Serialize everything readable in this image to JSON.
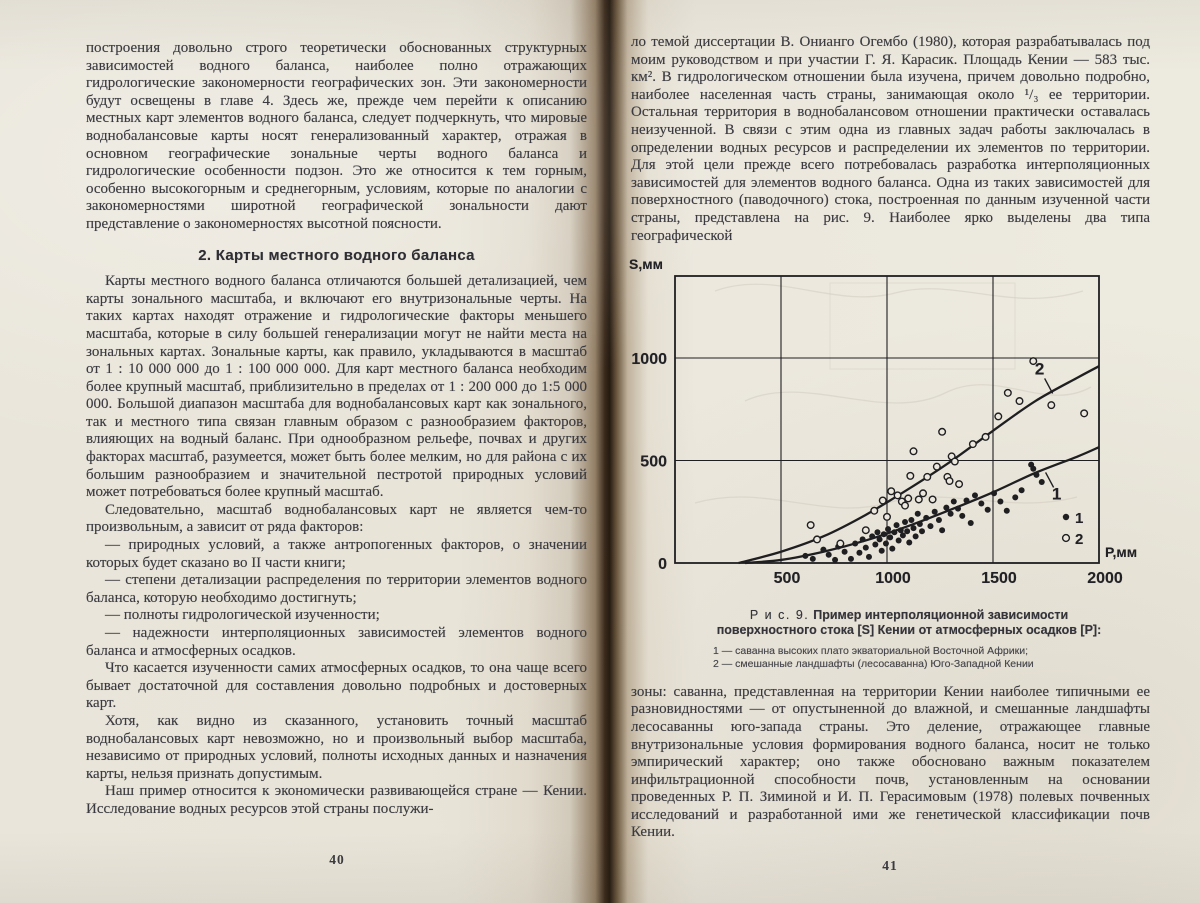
{
  "left_page": {
    "heading": "2. Карты местного водного баланса",
    "paragraphs": [
      "построения довольно строго теоретически обоснованных структурных зависимостей водного баланса, наиболее полно отражающих гидрологические закономерности географических зон. Эти закономерности будут освещены в главе 4. Здесь же, прежде чем перейти к описанию местных карт элементов водного баланса, следует подчеркнуть, что мировые воднобалансовые карты носят генерализованный характер, отражая в основном географические зональные черты водного баланса и гидрологические особенности подзон. Это же относится к тем горным, особенно высокогорным и среднегорным, условиям, которые по аналогии с закономерностями широтной географической зональности дают представление о закономерностях высотной поясности.",
      "Карты местного водного баланса отличаются большей детализацией, чем карты зонального масштаба, и включают его внутризональные черты. На таких картах находят отражение и гидрологические факторы меньшего масштаба, которые в силу большей генерализации могут не найти места на зональных картах. Зональные карты, как правило, укладываются в масштаб от 1 : 10 000 000 до 1 : 100 000 000. Для карт местного баланса необходим более крупный масштаб, приблизительно в пределах от 1 : 200 000 до 1:5 000 000. Большой диапазон масштаба для воднобалансовых карт как зонального, так и местного типа связан главным образом с разнообразием факторов, влияющих на водный баланс. При однообразном рельефе, почвах и других факторах масштаб, разумеется, может быть более мелким, но для района с их большим разнообразием и значительной пестротой природных условий может потребоваться более крупный масштаб.",
      "Следовательно, масштаб воднобалансовых карт не является чем-то произвольным, а зависит от ряда факторов:",
      "— природных условий, а также антропогенных факторов, о значении которых будет сказано во II части книги;",
      "— степени детализации распределения по территории элементов водного баланса, которую необходимо достигнуть;",
      "— полноты гидрологической изученности;",
      "— надежности интерполяционных зависимостей элементов водного баланса и атмосферных осадков.",
      "Что касается изученности самих атмосферных осадков, то она чаще всего бывает достаточной для составления довольно подробных и достоверных карт.",
      "Хотя, как видно из сказанного, установить точный масштаб воднобалансовых карт невозможно, но и произвольный выбор масштаба, независимо от природных условий, полноты исходных данных и назначения карты, нельзя признать допустимым.",
      "Наш пример относится к экономически развивающейся стране — Кении. Исследование водных ресурсов этой страны послужи-"
    ],
    "page_number": "40"
  },
  "right_page": {
    "paragraphs": [
      "ло темой диссертации В. Онианго Огембо (1980), которая разрабатывалась под моим руководством и при участии Г. Я. Карасик. Площадь Кении — 583 тыс. км². В гидрологическом отношении была изучена, причем довольно подробно, наиболее населенная часть страны, занимающая около ¹/₃ ее территории. Остальная территория в воднобалансовом отношении практически оставалась неизученной. В связи с этим одна из главных задач работы заключалась в определении водных ресурсов и распределении их элементов по территории. Для этой цели прежде всего потребовалась разработка интерполяционных зависимостей для элементов водного баланса. Одна из таких зависимостей для поверхностного (паводочного) стока, построенная по данным изученной части страны, представлена на рис. 9. Наиболее ярко выделены два типа географической",
      "зоны: саванна, представленная на территории Кении наиболее типичными ее разновидностями — от опустыненной до влажной, и смешанные ландшафты лесосаванны юго-запада страны. Это деление, отражающее главные внутризональные условия формирования водного баланса, носит не только эмпирический характер; оно также обосновано важным показателем инфильтрационной способности почв, установленным на основании проведенных Р. П. Зиминой и И. П. Герасимовым (1978) полевых почвенных исследований и разработанной ими же генетической классификации почв Кении."
    ],
    "caption": {
      "label": "Р и с.  9.",
      "title": "Пример интерполяционной зависимости поверхностного стока [S] Кении от атмосферных осадков [P]:",
      "item1": "1 — саванна высоких плато экваториальной Восточной Африки;",
      "item2": "2 — смешанные ландшафты (лесосаванна) Юго-Западной Кении"
    },
    "page_number": "41"
  },
  "chart_data": {
    "type": "scatter",
    "title": "Рис. 9. Пример интерполяционной зависимости поверхностного стока [S] Кении от атмосферных осадков [P]",
    "xlabel": "P,мм",
    "ylabel": "S,мм",
    "xlim": [
      0,
      2000
    ],
    "ylim": [
      0,
      1400
    ],
    "xticks": [
      500,
      1000,
      1500,
      2000
    ],
    "yticks": [
      0,
      500,
      1000
    ],
    "grid": true,
    "legend_position": "lower-right",
    "series": [
      {
        "name": "1 — саванна высоких плато экваториальной Восточной Африки",
        "marker": "filled",
        "legend_label": "1",
        "points": [
          [
            615,
            35
          ],
          [
            650,
            20
          ],
          [
            700,
            65
          ],
          [
            725,
            40
          ],
          [
            755,
            15
          ],
          [
            770,
            80
          ],
          [
            800,
            55
          ],
          [
            830,
            20
          ],
          [
            850,
            95
          ],
          [
            870,
            50
          ],
          [
            885,
            115
          ],
          [
            900,
            75
          ],
          [
            915,
            30
          ],
          [
            930,
            130
          ],
          [
            945,
            90
          ],
          [
            955,
            150
          ],
          [
            965,
            115
          ],
          [
            975,
            60
          ],
          [
            985,
            140
          ],
          [
            995,
            95
          ],
          [
            1005,
            165
          ],
          [
            1015,
            125
          ],
          [
            1025,
            70
          ],
          [
            1035,
            150
          ],
          [
            1045,
            185
          ],
          [
            1055,
            110
          ],
          [
            1065,
            160
          ],
          [
            1075,
            135
          ],
          [
            1085,
            200
          ],
          [
            1095,
            155
          ],
          [
            1105,
            100
          ],
          [
            1115,
            210
          ],
          [
            1125,
            170
          ],
          [
            1135,
            130
          ],
          [
            1145,
            240
          ],
          [
            1155,
            190
          ],
          [
            1165,
            155
          ],
          [
            1185,
            220
          ],
          [
            1205,
            180
          ],
          [
            1225,
            250
          ],
          [
            1245,
            210
          ],
          [
            1260,
            160
          ],
          [
            1280,
            270
          ],
          [
            1300,
            240
          ],
          [
            1315,
            300
          ],
          [
            1335,
            265
          ],
          [
            1355,
            230
          ],
          [
            1375,
            305
          ],
          [
            1395,
            195
          ],
          [
            1415,
            330
          ],
          [
            1445,
            290
          ],
          [
            1475,
            260
          ],
          [
            1505,
            340
          ],
          [
            1535,
            300
          ],
          [
            1565,
            255
          ],
          [
            1605,
            320
          ],
          [
            1635,
            355
          ],
          [
            1680,
            480
          ],
          [
            1690,
            460
          ],
          [
            1705,
            430
          ],
          [
            1730,
            395
          ]
        ]
      },
      {
        "name": "2 — смешанные ландшафты (лесосаванна) Юго-Западной Кении",
        "marker": "open",
        "legend_label": "2",
        "points": [
          [
            640,
            185
          ],
          [
            670,
            115
          ],
          [
            780,
            95
          ],
          [
            900,
            160
          ],
          [
            940,
            255
          ],
          [
            980,
            305
          ],
          [
            1000,
            225
          ],
          [
            1020,
            350
          ],
          [
            1050,
            330
          ],
          [
            1070,
            300
          ],
          [
            1085,
            280
          ],
          [
            1100,
            315
          ],
          [
            1110,
            425
          ],
          [
            1125,
            545
          ],
          [
            1150,
            310
          ],
          [
            1170,
            340
          ],
          [
            1190,
            420
          ],
          [
            1215,
            310
          ],
          [
            1235,
            470
          ],
          [
            1260,
            640
          ],
          [
            1285,
            420
          ],
          [
            1295,
            400
          ],
          [
            1305,
            520
          ],
          [
            1320,
            495
          ],
          [
            1340,
            385
          ],
          [
            1405,
            580
          ],
          [
            1465,
            615
          ],
          [
            1525,
            715
          ],
          [
            1570,
            830
          ],
          [
            1625,
            790
          ],
          [
            1690,
            985
          ],
          [
            1775,
            770
          ],
          [
            1930,
            730
          ]
        ]
      }
    ],
    "curves": [
      {
        "label": "1",
        "points": [
          [
            330,
            0
          ],
          [
            500,
            15
          ],
          [
            700,
            55
          ],
          [
            900,
            110
          ],
          [
            1100,
            180
          ],
          [
            1300,
            260
          ],
          [
            1500,
            345
          ],
          [
            1700,
            440
          ],
          [
            1900,
            520
          ],
          [
            2000,
            565
          ]
        ]
      },
      {
        "label": "2",
        "points": [
          [
            300,
            0
          ],
          [
            500,
            55
          ],
          [
            700,
            130
          ],
          [
            900,
            235
          ],
          [
            1100,
            360
          ],
          [
            1300,
            495
          ],
          [
            1500,
            645
          ],
          [
            1700,
            790
          ],
          [
            1900,
            905
          ],
          [
            2000,
            960
          ]
        ]
      }
    ],
    "curve_labels": [
      {
        "text": "1",
        "x": 1800,
        "y": 310
      },
      {
        "text": "2",
        "x": 1720,
        "y": 920
      }
    ],
    "legend": {
      "entries": [
        {
          "marker": "filled",
          "label": "1"
        },
        {
          "marker": "open",
          "label": "2"
        }
      ]
    }
  }
}
